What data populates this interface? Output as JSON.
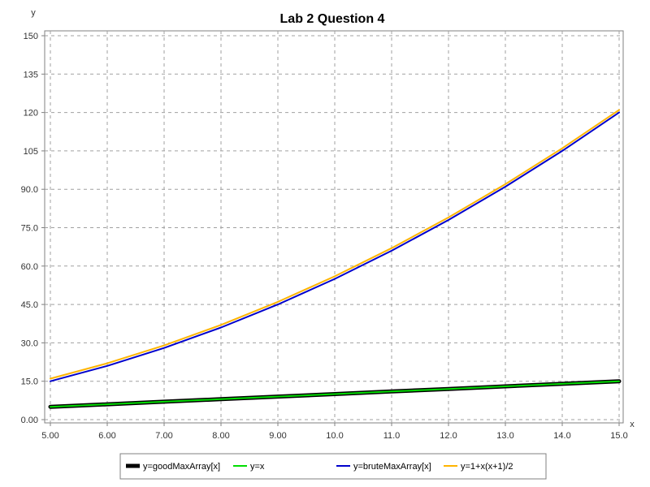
{
  "chart_data": {
    "type": "line",
    "title": "Lab 2 Question 4",
    "xlabel": "x",
    "ylabel": "y",
    "xlim": [
      5,
      15
    ],
    "ylim": [
      0,
      150
    ],
    "grid": true,
    "legend_position": "bottom",
    "x_ticks": [
      "5.00",
      "6.00",
      "7.00",
      "8.00",
      "9.00",
      "10.0",
      "11.0",
      "12.0",
      "13.0",
      "14.0",
      "15.0"
    ],
    "y_ticks": [
      "0.00",
      "15.0",
      "30.0",
      "45.0",
      "60.0",
      "75.0",
      "90.0",
      "105",
      "120",
      "135",
      "150"
    ],
    "x": [
      5,
      6,
      7,
      8,
      9,
      10,
      11,
      12,
      13,
      14,
      15
    ],
    "series": [
      {
        "name": "y=goodMaxArray[x]",
        "color": "#000000",
        "values": [
          5,
          6,
          7,
          8,
          9,
          10,
          11,
          12,
          13,
          14,
          15
        ]
      },
      {
        "name": "y=x",
        "color": "#00dd00",
        "values": [
          5,
          6,
          7,
          8,
          9,
          10,
          11,
          12,
          13,
          14,
          15
        ]
      },
      {
        "name": "y=bruteMaxArray[x]",
        "color": "#0000cc",
        "values": [
          15,
          21,
          28,
          36,
          45,
          55,
          66,
          78,
          91,
          105,
          120
        ]
      },
      {
        "name": "y=1+x(x+1)/2",
        "color": "#ffb400",
        "values": [
          16,
          22,
          29,
          37,
          46,
          56,
          67,
          79,
          92,
          106,
          121
        ]
      }
    ]
  }
}
